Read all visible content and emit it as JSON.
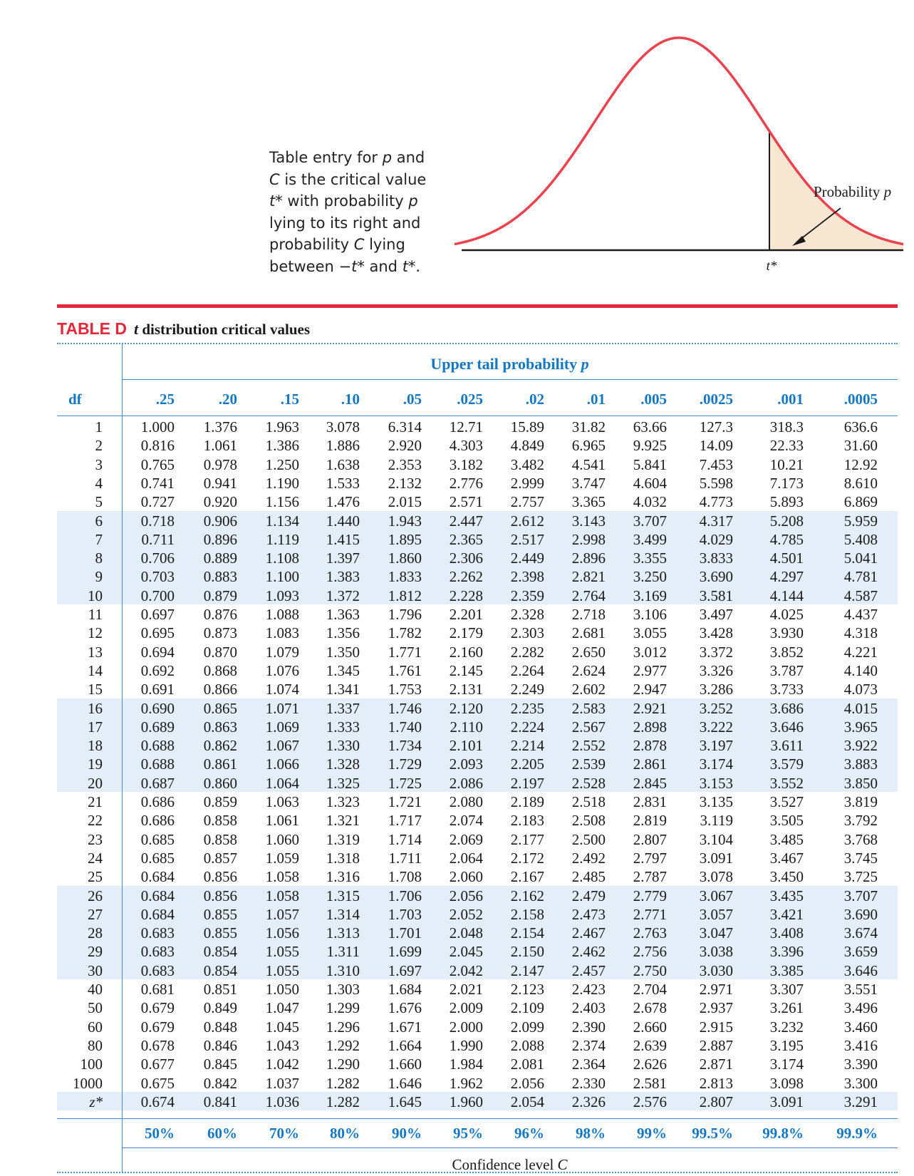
{
  "figure": {
    "caption_lines": [
      [
        "Table entry for ",
        "p",
        " and"
      ],
      [
        "",
        "C",
        " is the critical value"
      ],
      [
        "",
        "t*",
        " with probability ",
        "p"
      ],
      [
        "lying to its right and"
      ],
      [
        "probability ",
        "C",
        " lying"
      ],
      [
        "between −",
        "t*",
        " and ",
        "t*",
        "."
      ]
    ],
    "prob_label": "Probability",
    "prob_var": "p",
    "tstar_label": "t*",
    "colors": {
      "curve": "#e8434f",
      "tail_fill": "#f6e6d2",
      "axis": "#1a1a1a"
    }
  },
  "title": {
    "tag": "TABLE D",
    "var": "t",
    "text": " distribution critical values"
  },
  "upper_tail": {
    "label": "Upper tail probability ",
    "var": "p"
  },
  "df_header": "df",
  "p_headers": [
    ".25",
    ".20",
    ".15",
    ".10",
    ".05",
    ".025",
    ".02",
    ".01",
    ".005",
    ".0025",
    ".001",
    ".0005"
  ],
  "rows": [
    {
      "df": "1",
      "v": [
        "1.000",
        "1.376",
        "1.963",
        "3.078",
        "6.314",
        "12.71",
        "15.89",
        "31.82",
        "63.66",
        "127.3",
        "318.3",
        "636.6"
      ]
    },
    {
      "df": "2",
      "v": [
        "0.816",
        "1.061",
        "1.386",
        "1.886",
        "2.920",
        "4.303",
        "4.849",
        "6.965",
        "9.925",
        "14.09",
        "22.33",
        "31.60"
      ]
    },
    {
      "df": "3",
      "v": [
        "0.765",
        "0.978",
        "1.250",
        "1.638",
        "2.353",
        "3.182",
        "3.482",
        "4.541",
        "5.841",
        "7.453",
        "10.21",
        "12.92"
      ]
    },
    {
      "df": "4",
      "v": [
        "0.741",
        "0.941",
        "1.190",
        "1.533",
        "2.132",
        "2.776",
        "2.999",
        "3.747",
        "4.604",
        "5.598",
        "7.173",
        "8.610"
      ]
    },
    {
      "df": "5",
      "v": [
        "0.727",
        "0.920",
        "1.156",
        "1.476",
        "2.015",
        "2.571",
        "2.757",
        "3.365",
        "4.032",
        "4.773",
        "5.893",
        "6.869"
      ]
    },
    {
      "df": "6",
      "v": [
        "0.718",
        "0.906",
        "1.134",
        "1.440",
        "1.943",
        "2.447",
        "2.612",
        "3.143",
        "3.707",
        "4.317",
        "5.208",
        "5.959"
      ]
    },
    {
      "df": "7",
      "v": [
        "0.711",
        "0.896",
        "1.119",
        "1.415",
        "1.895",
        "2.365",
        "2.517",
        "2.998",
        "3.499",
        "4.029",
        "4.785",
        "5.408"
      ]
    },
    {
      "df": "8",
      "v": [
        "0.706",
        "0.889",
        "1.108",
        "1.397",
        "1.860",
        "2.306",
        "2.449",
        "2.896",
        "3.355",
        "3.833",
        "4.501",
        "5.041"
      ]
    },
    {
      "df": "9",
      "v": [
        "0.703",
        "0.883",
        "1.100",
        "1.383",
        "1.833",
        "2.262",
        "2.398",
        "2.821",
        "3.250",
        "3.690",
        "4.297",
        "4.781"
      ]
    },
    {
      "df": "10",
      "v": [
        "0.700",
        "0.879",
        "1.093",
        "1.372",
        "1.812",
        "2.228",
        "2.359",
        "2.764",
        "3.169",
        "3.581",
        "4.144",
        "4.587"
      ]
    },
    {
      "df": "11",
      "v": [
        "0.697",
        "0.876",
        "1.088",
        "1.363",
        "1.796",
        "2.201",
        "2.328",
        "2.718",
        "3.106",
        "3.497",
        "4.025",
        "4.437"
      ]
    },
    {
      "df": "12",
      "v": [
        "0.695",
        "0.873",
        "1.083",
        "1.356",
        "1.782",
        "2.179",
        "2.303",
        "2.681",
        "3.055",
        "3.428",
        "3.930",
        "4.318"
      ]
    },
    {
      "df": "13",
      "v": [
        "0.694",
        "0.870",
        "1.079",
        "1.350",
        "1.771",
        "2.160",
        "2.282",
        "2.650",
        "3.012",
        "3.372",
        "3.852",
        "4.221"
      ]
    },
    {
      "df": "14",
      "v": [
        "0.692",
        "0.868",
        "1.076",
        "1.345",
        "1.761",
        "2.145",
        "2.264",
        "2.624",
        "2.977",
        "3.326",
        "3.787",
        "4.140"
      ]
    },
    {
      "df": "15",
      "v": [
        "0.691",
        "0.866",
        "1.074",
        "1.341",
        "1.753",
        "2.131",
        "2.249",
        "2.602",
        "2.947",
        "3.286",
        "3.733",
        "4.073"
      ]
    },
    {
      "df": "16",
      "v": [
        "0.690",
        "0.865",
        "1.071",
        "1.337",
        "1.746",
        "2.120",
        "2.235",
        "2.583",
        "2.921",
        "3.252",
        "3.686",
        "4.015"
      ]
    },
    {
      "df": "17",
      "v": [
        "0.689",
        "0.863",
        "1.069",
        "1.333",
        "1.740",
        "2.110",
        "2.224",
        "2.567",
        "2.898",
        "3.222",
        "3.646",
        "3.965"
      ]
    },
    {
      "df": "18",
      "v": [
        "0.688",
        "0.862",
        "1.067",
        "1.330",
        "1.734",
        "2.101",
        "2.214",
        "2.552",
        "2.878",
        "3.197",
        "3.611",
        "3.922"
      ]
    },
    {
      "df": "19",
      "v": [
        "0.688",
        "0.861",
        "1.066",
        "1.328",
        "1.729",
        "2.093",
        "2.205",
        "2.539",
        "2.861",
        "3.174",
        "3.579",
        "3.883"
      ]
    },
    {
      "df": "20",
      "v": [
        "0.687",
        "0.860",
        "1.064",
        "1.325",
        "1.725",
        "2.086",
        "2.197",
        "2.528",
        "2.845",
        "3.153",
        "3.552",
        "3.850"
      ]
    },
    {
      "df": "21",
      "v": [
        "0.686",
        "0.859",
        "1.063",
        "1.323",
        "1.721",
        "2.080",
        "2.189",
        "2.518",
        "2.831",
        "3.135",
        "3.527",
        "3.819"
      ]
    },
    {
      "df": "22",
      "v": [
        "0.686",
        "0.858",
        "1.061",
        "1.321",
        "1.717",
        "2.074",
        "2.183",
        "2.508",
        "2.819",
        "3.119",
        "3.505",
        "3.792"
      ]
    },
    {
      "df": "23",
      "v": [
        "0.685",
        "0.858",
        "1.060",
        "1.319",
        "1.714",
        "2.069",
        "2.177",
        "2.500",
        "2.807",
        "3.104",
        "3.485",
        "3.768"
      ]
    },
    {
      "df": "24",
      "v": [
        "0.685",
        "0.857",
        "1.059",
        "1.318",
        "1.711",
        "2.064",
        "2.172",
        "2.492",
        "2.797",
        "3.091",
        "3.467",
        "3.745"
      ]
    },
    {
      "df": "25",
      "v": [
        "0.684",
        "0.856",
        "1.058",
        "1.316",
        "1.708",
        "2.060",
        "2.167",
        "2.485",
        "2.787",
        "3.078",
        "3.450",
        "3.725"
      ]
    },
    {
      "df": "26",
      "v": [
        "0.684",
        "0.856",
        "1.058",
        "1.315",
        "1.706",
        "2.056",
        "2.162",
        "2.479",
        "2.779",
        "3.067",
        "3.435",
        "3.707"
      ]
    },
    {
      "df": "27",
      "v": [
        "0.684",
        "0.855",
        "1.057",
        "1.314",
        "1.703",
        "2.052",
        "2.158",
        "2.473",
        "2.771",
        "3.057",
        "3.421",
        "3.690"
      ]
    },
    {
      "df": "28",
      "v": [
        "0.683",
        "0.855",
        "1.056",
        "1.313",
        "1.701",
        "2.048",
        "2.154",
        "2.467",
        "2.763",
        "3.047",
        "3.408",
        "3.674"
      ]
    },
    {
      "df": "29",
      "v": [
        "0.683",
        "0.854",
        "1.055",
        "1.311",
        "1.699",
        "2.045",
        "2.150",
        "2.462",
        "2.756",
        "3.038",
        "3.396",
        "3.659"
      ]
    },
    {
      "df": "30",
      "v": [
        "0.683",
        "0.854",
        "1.055",
        "1.310",
        "1.697",
        "2.042",
        "2.147",
        "2.457",
        "2.750",
        "3.030",
        "3.385",
        "3.646"
      ]
    },
    {
      "df": "40",
      "v": [
        "0.681",
        "0.851",
        "1.050",
        "1.303",
        "1.684",
        "2.021",
        "2.123",
        "2.423",
        "2.704",
        "2.971",
        "3.307",
        "3.551"
      ]
    },
    {
      "df": "50",
      "v": [
        "0.679",
        "0.849",
        "1.047",
        "1.299",
        "1.676",
        "2.009",
        "2.109",
        "2.403",
        "2.678",
        "2.937",
        "3.261",
        "3.496"
      ]
    },
    {
      "df": "60",
      "v": [
        "0.679",
        "0.848",
        "1.045",
        "1.296",
        "1.671",
        "2.000",
        "2.099",
        "2.390",
        "2.660",
        "2.915",
        "3.232",
        "3.460"
      ]
    },
    {
      "df": "80",
      "v": [
        "0.678",
        "0.846",
        "1.043",
        "1.292",
        "1.664",
        "1.990",
        "2.088",
        "2.374",
        "2.639",
        "2.887",
        "3.195",
        "3.416"
      ]
    },
    {
      "df": "100",
      "v": [
        "0.677",
        "0.845",
        "1.042",
        "1.290",
        "1.660",
        "1.984",
        "2.081",
        "2.364",
        "2.626",
        "2.871",
        "3.174",
        "3.390"
      ]
    },
    {
      "df": "1000",
      "v": [
        "0.675",
        "0.842",
        "1.037",
        "1.282",
        "1.646",
        "1.962",
        "2.056",
        "2.330",
        "2.581",
        "2.813",
        "3.098",
        "3.300"
      ]
    },
    {
      "df": "z*",
      "v": [
        "0.674",
        "0.841",
        "1.036",
        "1.282",
        "1.645",
        "1.960",
        "2.054",
        "2.326",
        "2.576",
        "2.807",
        "3.091",
        "3.291"
      ]
    }
  ],
  "confidence_levels": [
    "50%",
    "60%",
    "70%",
    "80%",
    "90%",
    "95%",
    "96%",
    "98%",
    "99%",
    "99.5%",
    "99.8%",
    "99.9%"
  ],
  "confidence_label": {
    "text": "Confidence level ",
    "var": "C"
  },
  "colors": {
    "accent_red": "#e2283a",
    "accent_blue": "#1577c2",
    "rule_blue": "#3d8bd0",
    "band": "#e3eef8"
  }
}
